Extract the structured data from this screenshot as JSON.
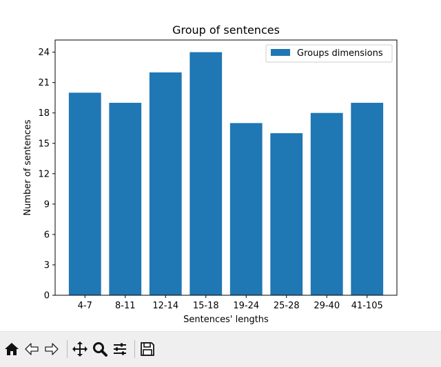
{
  "chart_data": {
    "type": "bar",
    "title": "Group of sentences",
    "xlabel": "Sentences' lengths",
    "ylabel": "Number of sentences",
    "categories": [
      "4-7",
      "8-11",
      "12-14",
      "15-18",
      "19-24",
      "25-28",
      "29-40",
      "41-105"
    ],
    "series": [
      {
        "name": "Groups dimensions",
        "values": [
          20,
          19,
          22,
          24,
          17,
          16,
          18,
          19
        ]
      }
    ],
    "ylim": [
      0,
      25.2
    ],
    "yticks": [
      "0",
      "3",
      "6",
      "9",
      "12",
      "15",
      "18",
      "21",
      "24"
    ],
    "legend_position": "top-right",
    "grid": false,
    "bar_color": "#1f77b4"
  },
  "toolbar": {
    "buttons": [
      "home-icon",
      "back-arrow-icon",
      "forward-arrow-icon",
      "pan-icon",
      "zoom-icon",
      "subplots-icon",
      "save-icon"
    ]
  }
}
